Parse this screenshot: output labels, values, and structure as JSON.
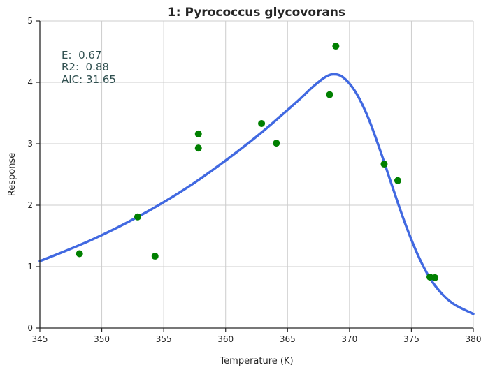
{
  "chart_data": {
    "type": "scatter",
    "title": "1: Pyrococcus glycovorans",
    "xlabel": "Temperature (K)",
    "ylabel": "Response",
    "xlim": [
      345,
      380
    ],
    "ylim": [
      0,
      5
    ],
    "xticks": [
      345,
      350,
      355,
      360,
      365,
      370,
      375,
      380
    ],
    "yticks": [
      0,
      1,
      2,
      3,
      4,
      5
    ],
    "xtick_labels": [
      "345",
      "350",
      "355",
      "360",
      "365",
      "370",
      "375",
      "380"
    ],
    "ytick_labels": [
      "0",
      "1",
      "2",
      "3",
      "4",
      "5"
    ],
    "grid": true,
    "annotations": [
      "E:  0.67",
      "R2:  0.88",
      "AIC: 31.65"
    ],
    "colors": {
      "points": "#008000",
      "fit": "#4169e1"
    },
    "points": [
      {
        "x": 348.2,
        "y": 1.21
      },
      {
        "x": 352.9,
        "y": 1.81
      },
      {
        "x": 354.3,
        "y": 1.17
      },
      {
        "x": 357.8,
        "y": 3.16
      },
      {
        "x": 357.8,
        "y": 2.93
      },
      {
        "x": 362.9,
        "y": 3.33
      },
      {
        "x": 364.1,
        "y": 3.01
      },
      {
        "x": 368.4,
        "y": 3.8
      },
      {
        "x": 368.9,
        "y": 4.59
      },
      {
        "x": 372.8,
        "y": 2.67
      },
      {
        "x": 373.9,
        "y": 2.4
      },
      {
        "x": 376.5,
        "y": 0.83
      },
      {
        "x": 376.9,
        "y": 0.82
      }
    ],
    "fit_curve": {
      "x": [
        345,
        347,
        349,
        351,
        353,
        355,
        357,
        359,
        361,
        363,
        365,
        366,
        367,
        368,
        368.7,
        369.5,
        370.5,
        371.5,
        372.5,
        373.5,
        374.5,
        375.5,
        376.5,
        377.5,
        378.5,
        380
      ],
      "y": [
        1.09,
        1.25,
        1.42,
        1.61,
        1.82,
        2.05,
        2.3,
        2.58,
        2.88,
        3.2,
        3.55,
        3.73,
        3.92,
        4.08,
        4.13,
        4.08,
        3.84,
        3.43,
        2.88,
        2.28,
        1.7,
        1.2,
        0.81,
        0.55,
        0.38,
        0.23
      ]
    }
  }
}
